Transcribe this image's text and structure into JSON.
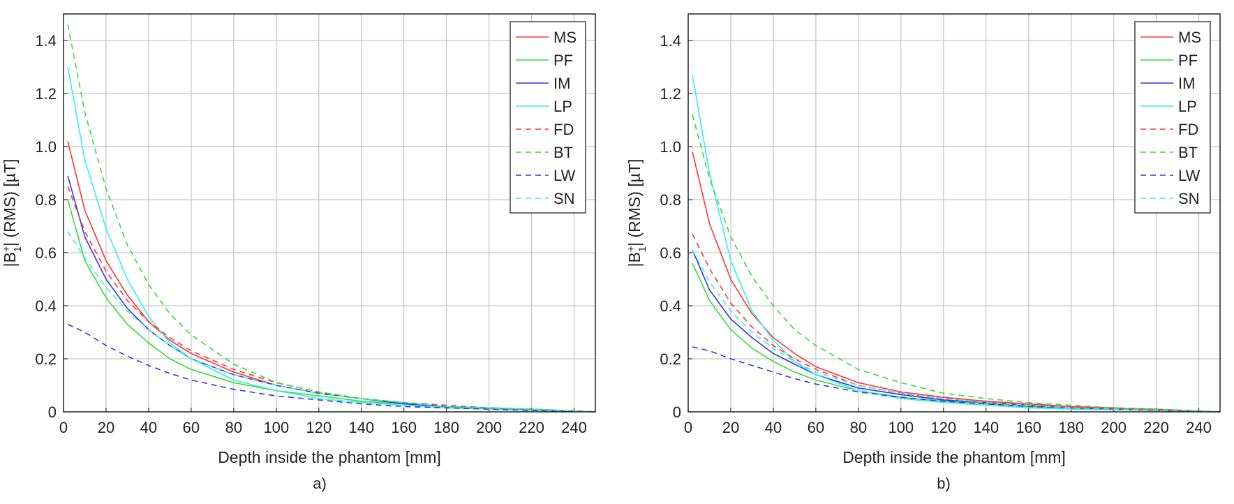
{
  "chart_data": [
    {
      "type": "line",
      "panel_label": "a)",
      "title": "",
      "xlabel": "Depth inside the phantom [mm]",
      "ylabel_prefix": "|B",
      "ylabel_sup": "+",
      "ylabel_sub": "1",
      "ylabel_suffix": "| (RMS) [µT]",
      "xlim": [
        0,
        250
      ],
      "ylim": [
        0,
        1.5
      ],
      "xticks": [
        0,
        20,
        40,
        60,
        80,
        100,
        120,
        140,
        160,
        180,
        200,
        220,
        240
      ],
      "yticks": [
        0,
        0.2,
        0.4,
        0.6,
        0.8,
        1.0,
        1.2,
        1.4
      ],
      "ytick_labels": [
        "0",
        "0.2",
        "0.4",
        "0.6",
        "0.8",
        "1.0",
        "1.2",
        "1.4"
      ],
      "grid": true,
      "legend_position": "top-right",
      "x": [
        2,
        10,
        20,
        30,
        40,
        50,
        60,
        80,
        100,
        120,
        140,
        160,
        180,
        200,
        220,
        250
      ],
      "series": [
        {
          "name": "MS",
          "color": "#ff3333",
          "dash": "solid",
          "values": [
            1.02,
            0.76,
            0.57,
            0.44,
            0.34,
            0.27,
            0.22,
            0.15,
            0.1,
            0.07,
            0.05,
            0.035,
            0.02,
            0.015,
            0.01,
            0.0
          ]
        },
        {
          "name": "PF",
          "color": "#33dd33",
          "dash": "solid",
          "values": [
            0.8,
            0.57,
            0.43,
            0.33,
            0.26,
            0.2,
            0.16,
            0.11,
            0.08,
            0.06,
            0.04,
            0.03,
            0.02,
            0.01,
            0.008,
            0.0
          ]
        },
        {
          "name": "IM",
          "color": "#3333ee",
          "dash": "solid",
          "values": [
            0.89,
            0.66,
            0.5,
            0.39,
            0.31,
            0.25,
            0.2,
            0.14,
            0.1,
            0.07,
            0.05,
            0.03,
            0.02,
            0.015,
            0.01,
            0.0
          ]
        },
        {
          "name": "LP",
          "color": "#33eeee",
          "dash": "solid",
          "values": [
            1.3,
            0.95,
            0.69,
            0.5,
            0.36,
            0.26,
            0.2,
            0.12,
            0.08,
            0.05,
            0.035,
            0.025,
            0.015,
            0.01,
            0.005,
            0.0
          ]
        },
        {
          "name": "FD",
          "color": "#ff3333",
          "dash": "dashed",
          "values": [
            0.85,
            0.68,
            0.53,
            0.42,
            0.34,
            0.28,
            0.23,
            0.16,
            0.11,
            0.075,
            0.05,
            0.035,
            0.025,
            0.015,
            0.01,
            0.0
          ]
        },
        {
          "name": "BT",
          "color": "#33dd33",
          "dash": "dashed",
          "values": [
            1.46,
            1.13,
            0.84,
            0.63,
            0.48,
            0.37,
            0.29,
            0.18,
            0.11,
            0.075,
            0.05,
            0.035,
            0.02,
            0.015,
            0.01,
            0.0
          ]
        },
        {
          "name": "LW",
          "color": "#3333ee",
          "dash": "dashed",
          "values": [
            0.33,
            0.3,
            0.25,
            0.21,
            0.175,
            0.145,
            0.12,
            0.085,
            0.06,
            0.045,
            0.03,
            0.02,
            0.015,
            0.01,
            0.005,
            0.0
          ]
        },
        {
          "name": "SN",
          "color": "#33eeee",
          "dash": "dashed",
          "values": [
            0.68,
            0.58,
            0.47,
            0.38,
            0.31,
            0.25,
            0.2,
            0.14,
            0.1,
            0.07,
            0.05,
            0.035,
            0.02,
            0.015,
            0.01,
            0.0
          ]
        }
      ]
    },
    {
      "type": "line",
      "panel_label": "b)",
      "title": "",
      "xlabel": "Depth inside the phantom [mm]",
      "ylabel_prefix": "|B",
      "ylabel_sup": "+",
      "ylabel_sub": "1",
      "ylabel_suffix": "| (RMS) [µT]",
      "xlim": [
        0,
        250
      ],
      "ylim": [
        0,
        1.5
      ],
      "xticks": [
        0,
        20,
        40,
        60,
        80,
        100,
        120,
        140,
        160,
        180,
        200,
        220,
        240
      ],
      "yticks": [
        0,
        0.2,
        0.4,
        0.6,
        0.8,
        1.0,
        1.2,
        1.4
      ],
      "ytick_labels": [
        "0",
        "0.2",
        "0.4",
        "0.6",
        "0.8",
        "1.0",
        "1.2",
        "1.4"
      ],
      "grid": true,
      "legend_position": "top-right",
      "x": [
        2,
        10,
        20,
        30,
        40,
        50,
        60,
        80,
        100,
        120,
        140,
        160,
        180,
        200,
        220,
        250
      ],
      "series": [
        {
          "name": "MS",
          "color": "#ff3333",
          "dash": "solid",
          "values": [
            0.98,
            0.71,
            0.5,
            0.37,
            0.28,
            0.22,
            0.17,
            0.11,
            0.075,
            0.055,
            0.04,
            0.03,
            0.02,
            0.015,
            0.01,
            0.0
          ]
        },
        {
          "name": "PF",
          "color": "#33dd33",
          "dash": "solid",
          "values": [
            0.56,
            0.42,
            0.31,
            0.24,
            0.19,
            0.15,
            0.12,
            0.08,
            0.055,
            0.04,
            0.03,
            0.02,
            0.015,
            0.01,
            0.005,
            0.0
          ]
        },
        {
          "name": "IM",
          "color": "#3333ee",
          "dash": "solid",
          "values": [
            0.61,
            0.46,
            0.35,
            0.28,
            0.22,
            0.18,
            0.14,
            0.09,
            0.065,
            0.045,
            0.035,
            0.025,
            0.015,
            0.01,
            0.005,
            0.0
          ]
        },
        {
          "name": "LP",
          "color": "#33eeee",
          "dash": "solid",
          "values": [
            1.27,
            0.9,
            0.57,
            0.38,
            0.27,
            0.19,
            0.14,
            0.08,
            0.05,
            0.035,
            0.025,
            0.015,
            0.01,
            0.008,
            0.005,
            0.0
          ]
        },
        {
          "name": "FD",
          "color": "#ff3333",
          "dash": "dashed",
          "values": [
            0.67,
            0.54,
            0.41,
            0.32,
            0.25,
            0.2,
            0.16,
            0.1,
            0.07,
            0.05,
            0.035,
            0.025,
            0.015,
            0.01,
            0.005,
            0.0
          ]
        },
        {
          "name": "BT",
          "color": "#33dd33",
          "dash": "dashed",
          "values": [
            1.12,
            0.88,
            0.66,
            0.51,
            0.4,
            0.31,
            0.25,
            0.16,
            0.11,
            0.07,
            0.05,
            0.035,
            0.025,
            0.015,
            0.01,
            0.0
          ]
        },
        {
          "name": "LW",
          "color": "#3333ee",
          "dash": "dashed",
          "values": [
            0.245,
            0.23,
            0.2,
            0.175,
            0.15,
            0.125,
            0.105,
            0.075,
            0.055,
            0.04,
            0.03,
            0.02,
            0.015,
            0.01,
            0.005,
            0.0
          ]
        },
        {
          "name": "SN",
          "color": "#33eeee",
          "dash": "dashed",
          "values": [
            0.61,
            0.49,
            0.38,
            0.3,
            0.24,
            0.19,
            0.15,
            0.1,
            0.07,
            0.05,
            0.035,
            0.025,
            0.015,
            0.01,
            0.005,
            0.0
          ]
        }
      ]
    }
  ]
}
